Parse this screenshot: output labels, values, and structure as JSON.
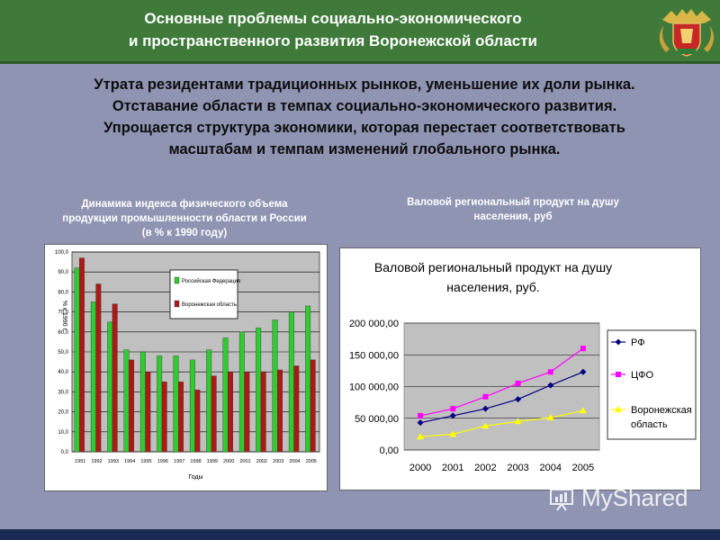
{
  "header": {
    "title_line1": "Основные проблемы социально-экономического",
    "title_line2": "и пространственного развития Воронежской области"
  },
  "main_text": {
    "line1": "Утрата резидентами традиционных рынков, уменьшение их доли рынка.",
    "line2": "Отставание области в темпах социально-экономического развития.",
    "line3": "Упрощается структура экономики, которая перестает соответствовать",
    "line4": "масштабам и темпам изменений глобального рынка."
  },
  "captions": {
    "left_line1": "Динамика индекса физического объема",
    "left_line2": "продукции промышленности области и России",
    "left_line3": "(в % к 1990 году)",
    "right_line1": "Валовой региональный продукт на душу",
    "right_line2": "населения, руб"
  },
  "watermark": {
    "text": "MyShared"
  },
  "colors": {
    "header": "#3f7a3a",
    "rf_bar": "#2ecc2e",
    "vo_bar": "#b01818",
    "rf_line": "#000080",
    "cfo_line": "#ff00ff",
    "vo_line": "#ffff00"
  },
  "chart_data": [
    {
      "type": "bar",
      "categories": [
        "1991",
        "1992",
        "1993",
        "1994",
        "1995",
        "1996",
        "1997",
        "1998",
        "1999",
        "2000",
        "2001",
        "2002",
        "2003",
        "2004",
        "2005"
      ],
      "series": [
        {
          "name": "Российская Федерация",
          "values": [
            92,
            75,
            65,
            51,
            50,
            48,
            48,
            46,
            51,
            57,
            60,
            62,
            66,
            70,
            73
          ]
        },
        {
          "name": "Воронежская область",
          "values": [
            97,
            84,
            74,
            46,
            40,
            35,
            35,
            31,
            38,
            40,
            40,
            40,
            41,
            43,
            46
          ]
        }
      ],
      "xlabel": "Годы",
      "ylabel": "% к 1990 г.",
      "yticks": [
        "0,0",
        "10,0",
        "20,0",
        "30,0",
        "40,0",
        "50,0",
        "60,0",
        "70,0",
        "80,0",
        "90,0",
        "100,0"
      ],
      "ylim": [
        0,
        100
      ],
      "grid": true,
      "legend": "top-right"
    },
    {
      "type": "line",
      "title_line1": "Валовой региональный продукт на душу",
      "title_line2": "населения, руб.",
      "x": [
        "2000",
        "2001",
        "2002",
        "2003",
        "2004",
        "2005"
      ],
      "series": [
        {
          "name": "РФ",
          "values": [
            43000,
            54000,
            65000,
            80000,
            102000,
            123000
          ]
        },
        {
          "name": "ЦФО",
          "values": [
            54000,
            65000,
            84000,
            105000,
            123000,
            160000
          ]
        },
        {
          "name": "Воронежская область",
          "legend_line1": "Воронежская",
          "legend_line2": "область",
          "values": [
            21000,
            25000,
            38000,
            45000,
            51000,
            62000
          ]
        }
      ],
      "yticks": [
        "0,00",
        "50 000,00",
        "100 000,00",
        "150 000,00",
        "200 000,00"
      ],
      "ylim": [
        0,
        200000
      ],
      "grid": true,
      "legend": "right"
    }
  ]
}
